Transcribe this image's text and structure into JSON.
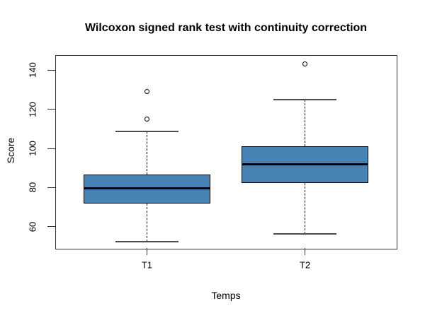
{
  "title": "Wilcoxon signed rank test with continuity correction",
  "chart_data": {
    "type": "boxplot",
    "title": "Wilcoxon signed rank test with continuity correction",
    "xlabel": "Temps",
    "ylabel": "Score",
    "categories": [
      "T1",
      "T2"
    ],
    "yticks": [
      60,
      80,
      100,
      120,
      140
    ],
    "ylim": [
      48.8,
      147.6
    ],
    "grid": false,
    "series": [
      {
        "name": "T1",
        "lower_whisker": 52.5,
        "q1": 72,
        "median": 79.5,
        "q3": 86.5,
        "upper_whisker": 108.5,
        "outliers": [
          115,
          129
        ]
      },
      {
        "name": "T2",
        "lower_whisker": 56.5,
        "q1": 82.5,
        "median": 92,
        "q3": 101,
        "upper_whisker": 125,
        "outliers": [
          143
        ]
      }
    ],
    "colors": {
      "box_fill": "#4682B4",
      "box_border": "#000000",
      "median": "#000000",
      "whisker": "#000000",
      "staple": "#4d4d4d",
      "frame": "#333333",
      "background": "#ffffff",
      "text": "#000000"
    }
  }
}
